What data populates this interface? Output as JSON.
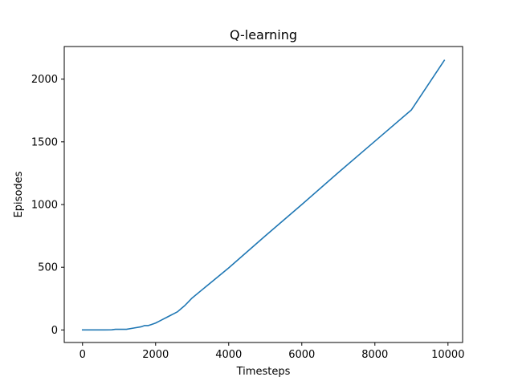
{
  "chart_data": {
    "type": "line",
    "title": "Q-learning",
    "xlabel": "Timesteps",
    "ylabel": "Episodes",
    "xlim": [
      -500,
      10400
    ],
    "ylim": [
      -100,
      2260
    ],
    "xticks": [
      0,
      2000,
      4000,
      6000,
      8000,
      10000
    ],
    "yticks": [
      0,
      500,
      1000,
      1500,
      2000
    ],
    "grid": false,
    "legend": "none",
    "series": [
      {
        "color": "#1f77b4",
        "x": [
          0,
          200,
          400,
          600,
          800,
          900,
          1000,
          1200,
          1400,
          1600,
          1700,
          1800,
          1900,
          2000,
          2100,
          2200,
          2300,
          2400,
          2500,
          2600,
          2700,
          2800,
          2900,
          3000,
          3500,
          4000,
          5000,
          6000,
          7000,
          8000,
          9000,
          9900
        ],
        "y": [
          0,
          0,
          0,
          0,
          1,
          5,
          5,
          5,
          15,
          25,
          35,
          35,
          45,
          55,
          70,
          85,
          100,
          115,
          130,
          145,
          170,
          195,
          225,
          255,
          375,
          495,
          750,
          1000,
          1255,
          1505,
          1755,
          2150
        ]
      }
    ]
  }
}
